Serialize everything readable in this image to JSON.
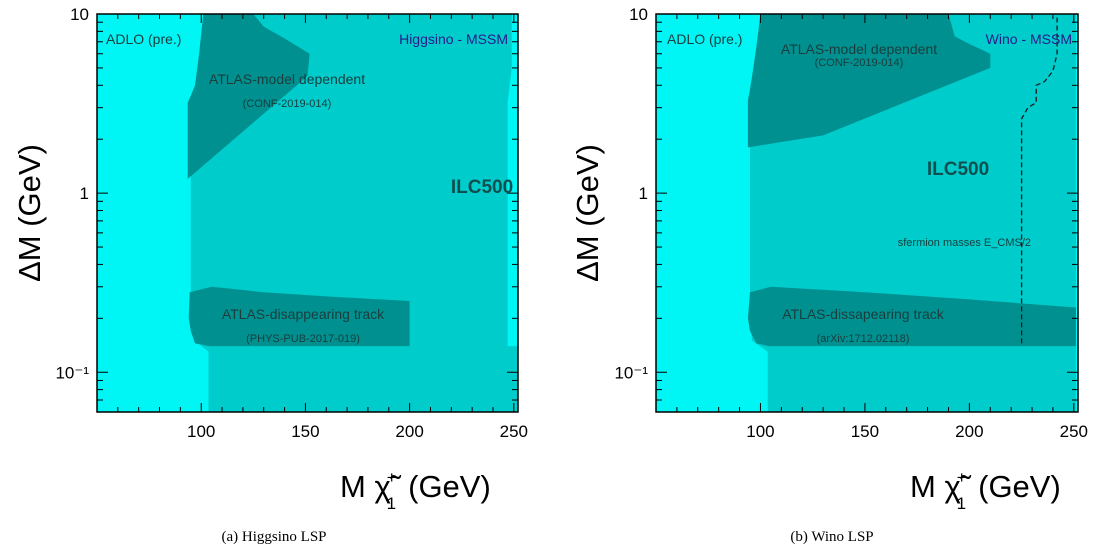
{
  "chart_data": [
    {
      "type": "area",
      "caption": "(a) Higgsino LSP",
      "corner_label": "ADLO (pre.)",
      "model_label": "Higgsino - MSSM",
      "ylabel": "ΔM (GeV)",
      "xlabel_prefix": "M",
      "xlabel_symbol": "χ̃",
      "xlabel_sup": "+",
      "xlabel_sub": "1",
      "xlabel_unit": "(GeV)",
      "x_scale": "linear",
      "y_scale": "log",
      "xlim": [
        50,
        252
      ],
      "ylim": [
        0.06,
        10
      ],
      "xticks": [
        "100",
        "150",
        "200",
        "250"
      ],
      "xtick_values": [
        100,
        150,
        200,
        250
      ],
      "yticks": [
        "10⁻¹",
        "1",
        "10"
      ],
      "ytick_values": [
        0.1,
        1,
        10
      ],
      "colors": {
        "background": "#00f5f5",
        "ilc": "#00cccc",
        "atlas": "#009090"
      },
      "regions": [
        {
          "name": "ILC500",
          "label": "ILC500",
          "color": "ilc",
          "points": [
            [
              103.5,
              0.06
            ],
            [
              103.5,
              0.13
            ],
            [
              97,
              0.15
            ],
            [
              95,
              0.2
            ],
            [
              95,
              0.8
            ],
            [
              95,
              2.2
            ],
            [
              96,
              3.2
            ],
            [
              97,
              3.6
            ],
            [
              99,
              5.0
            ],
            [
              100,
              7.2
            ],
            [
              101.5,
              10
            ],
            [
              249,
              10
            ],
            [
              249,
              5
            ],
            [
              247,
              3.2
            ],
            [
              247,
              0.14
            ],
            [
              252,
              0.14
            ],
            [
              252,
              0.06
            ]
          ]
        },
        {
          "name": "ATLAS-model dependent",
          "label": "ATLAS-model dependent",
          "sublabel": "(CONF-2019-014)",
          "color": "atlas",
          "points": [
            [
              93.5,
              1.2
            ],
            [
              93.5,
              3.2
            ],
            [
              95,
              3.5
            ],
            [
              97,
              4.0
            ],
            [
              99,
              6.0
            ],
            [
              101,
              10
            ],
            [
              125,
              10
            ],
            [
              130,
              8.5
            ],
            [
              140,
              7.3
            ],
            [
              152,
              6.0
            ],
            [
              151,
              4.5
            ]
          ]
        },
        {
          "name": "ATLAS-disappearing track",
          "label": "ATLAS-disappearing track",
          "sublabel": "(PHYS-PUB-2017-019)",
          "color": "atlas",
          "points": [
            [
              94.5,
              0.28
            ],
            [
              105,
              0.3
            ],
            [
              130,
              0.28
            ],
            [
              160,
              0.265
            ],
            [
              200,
              0.25
            ],
            [
              200,
              0.14
            ],
            [
              104,
              0.14
            ],
            [
              97,
              0.145
            ],
            [
              95,
              0.17
            ],
            [
              94,
              0.2
            ]
          ]
        }
      ],
      "lines": []
    },
    {
      "type": "area",
      "caption": "(b) Wino LSP",
      "corner_label": "ADLO (pre.)",
      "model_label": "Wino - MSSM",
      "ylabel": "ΔM (GeV)",
      "xlabel_prefix": "M",
      "xlabel_symbol": "χ̃",
      "xlabel_sup": "+",
      "xlabel_sub": "1",
      "xlabel_unit": "(GeV)",
      "x_scale": "linear",
      "y_scale": "log",
      "xlim": [
        50,
        252
      ],
      "ylim": [
        0.06,
        10
      ],
      "xticks": [
        "100",
        "150",
        "200",
        "250"
      ],
      "xtick_values": [
        100,
        150,
        200,
        250
      ],
      "yticks": [
        "10⁻¹",
        "1",
        "10"
      ],
      "ytick_values": [
        0.1,
        1,
        10
      ],
      "colors": {
        "background": "#00f5f5",
        "ilc": "#00cccc",
        "atlas": "#009090"
      },
      "regions": [
        {
          "name": "ILC500",
          "label": "ILC500",
          "color": "ilc",
          "points": [
            [
              103.5,
              0.06
            ],
            [
              103.5,
              0.13
            ],
            [
              96,
              0.15
            ],
            [
              95,
              0.2
            ],
            [
              95,
              0.9
            ],
            [
              95,
              1.8
            ],
            [
              96,
              2.5
            ],
            [
              97,
              3.2
            ],
            [
              99,
              5.0
            ],
            [
              100,
              7.2
            ],
            [
              101,
              10
            ],
            [
              251,
              10
            ],
            [
              251,
              0.06
            ]
          ]
        },
        {
          "name": "ATLAS-model dependent",
          "label": "ATLAS-model dependent",
          "sublabel": "(CONF-2019-014)",
          "color": "atlas",
          "points": [
            [
              94,
              1.8
            ],
            [
              94,
              3.3
            ],
            [
              95,
              3.8
            ],
            [
              96,
              4.5
            ],
            [
              98,
              6.5
            ],
            [
              100,
              10
            ],
            [
              190,
              10
            ],
            [
              193,
              7.5
            ],
            [
              200,
              6.8
            ],
            [
              210,
              6.0
            ],
            [
              210,
              5.0
            ],
            [
              130,
              2.1
            ]
          ]
        },
        {
          "name": "ATLAS-dissapearing track",
          "label": "ATLAS-dissapearing track",
          "sublabel": "(arXiv:1712.02118)",
          "color": "atlas",
          "points": [
            [
              95,
              0.28
            ],
            [
              105,
              0.3
            ],
            [
              150,
              0.28
            ],
            [
              200,
              0.255
            ],
            [
              251,
              0.23
            ],
            [
              251,
              0.14
            ],
            [
              104,
              0.14
            ],
            [
              98,
              0.145
            ],
            [
              95,
              0.17
            ],
            [
              94,
              0.2
            ]
          ]
        }
      ],
      "lines": [
        {
          "name": "sfermion masses E_CMS/2",
          "label": "sfermion masses E_CMS/2",
          "style": "dashed",
          "points": [
            [
              225,
              0.145
            ],
            [
              225,
              2.6
            ],
            [
              228,
              3.0
            ],
            [
              232,
              3.2
            ],
            [
              232,
              4.0
            ],
            [
              236,
              4.2
            ],
            [
              240,
              4.8
            ],
            [
              242,
              6.0
            ],
            [
              242,
              10
            ]
          ]
        }
      ]
    }
  ]
}
